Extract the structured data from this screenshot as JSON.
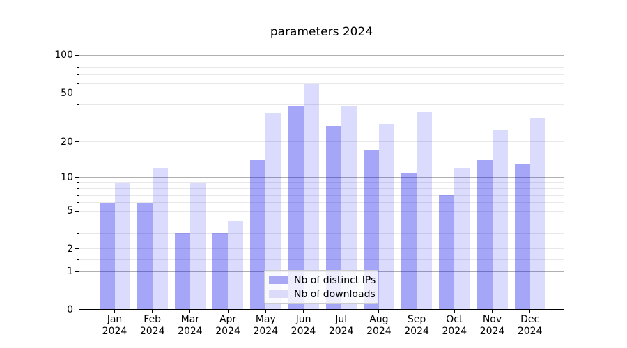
{
  "figure": {
    "background": "#ffffff",
    "spine_color": "#000000",
    "major_gridline_color": "#b0b0b0",
    "minor_gridline_color": "#e8e8e8"
  },
  "chart_data": {
    "type": "bar",
    "title": "parameters 2024",
    "xlabel": "",
    "ylabel": "",
    "yscale": "log1p",
    "ylim": [
      0,
      128
    ],
    "grid": true,
    "legend_position": "lower center",
    "y_major_ticks": [
      0,
      1,
      2,
      5,
      10,
      20,
      50,
      100
    ],
    "y_decade_gridlines": [
      1,
      10,
      100
    ],
    "y_minor_gridlines": [
      1.5,
      2,
      3,
      4,
      5,
      6,
      7,
      8,
      9,
      15,
      20,
      30,
      40,
      50,
      60,
      70,
      80,
      90
    ],
    "categories": [
      "Jan 2024",
      "Feb 2024",
      "Mar 2024",
      "Apr 2024",
      "May 2024",
      "Jun 2024",
      "Jul 2024",
      "Aug 2024",
      "Sep 2024",
      "Oct 2024",
      "Nov 2024",
      "Dec 2024"
    ],
    "series": [
      {
        "name": "Nb of distinct IPs",
        "key": "distinct-ips",
        "color": "rgba(0,0,238,0.35)",
        "legend_color": "#a8a8f5",
        "values": [
          6,
          6,
          3,
          3,
          14,
          39,
          27,
          17,
          11,
          7,
          14,
          13
        ]
      },
      {
        "name": "Nb of downloads",
        "key": "downloads",
        "color": "rgba(0,0,238,0.14)",
        "legend_color": "#dcdcfa",
        "values": [
          9,
          12,
          9,
          4,
          34,
          59,
          39,
          28,
          35,
          12,
          25,
          31
        ]
      }
    ]
  }
}
